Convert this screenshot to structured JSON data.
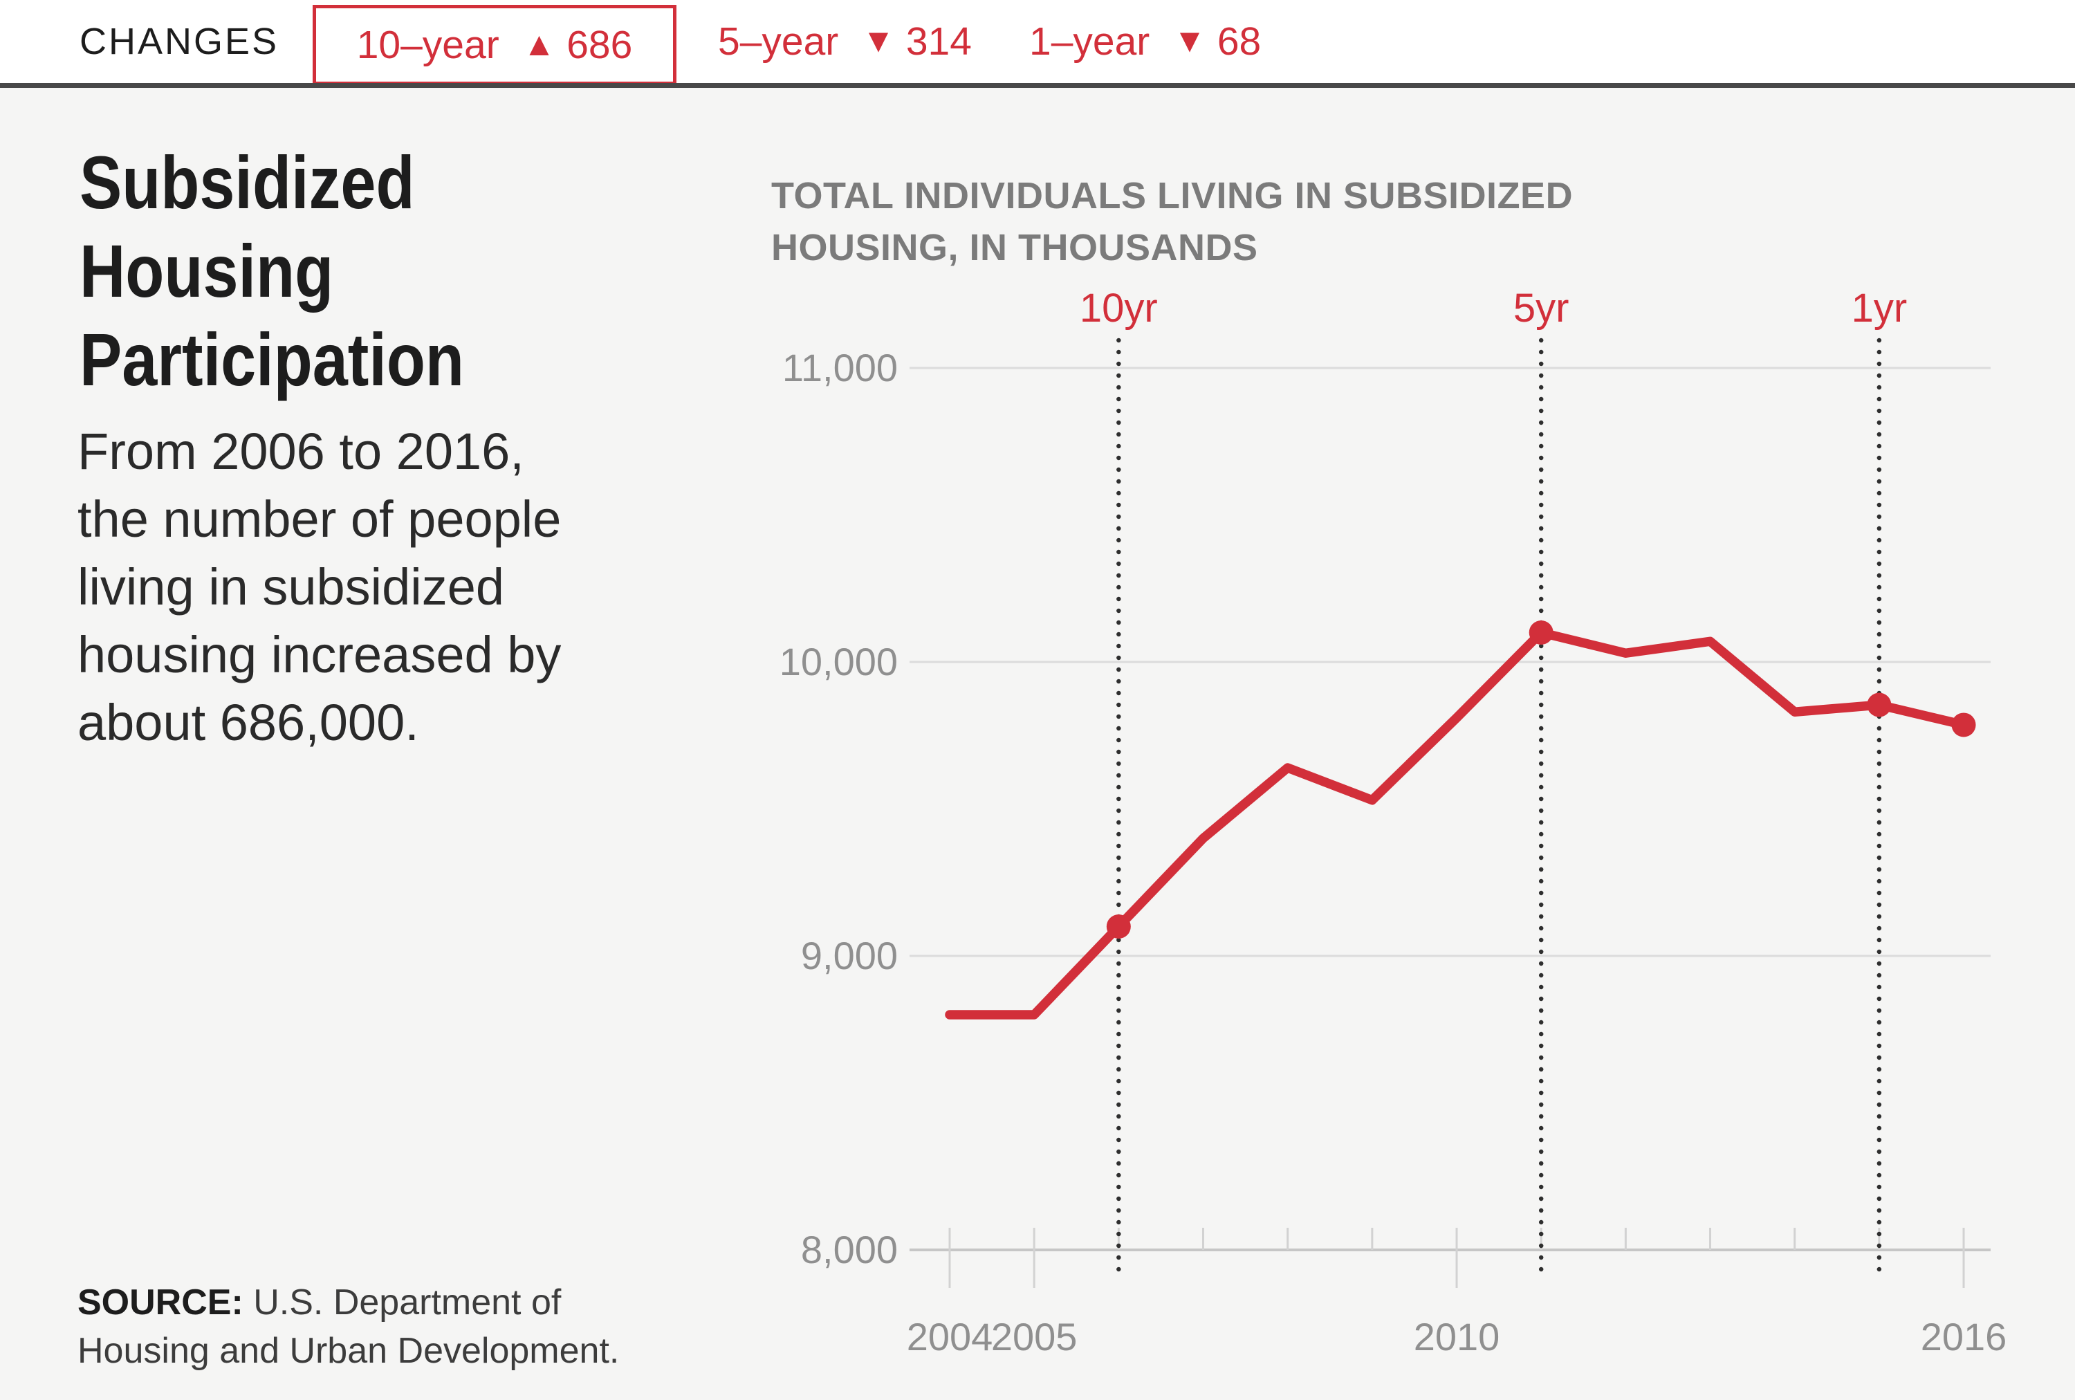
{
  "header": {
    "changes_label": "CHANGES",
    "changes": [
      {
        "period": "10–year",
        "direction": "up",
        "value": "686",
        "boxed": true
      },
      {
        "period": "5–year",
        "direction": "down",
        "value": "314",
        "boxed": false
      },
      {
        "period": "1–year",
        "direction": "down",
        "value": "68",
        "boxed": false
      }
    ]
  },
  "article": {
    "title_lines": [
      "Subsidized",
      "Housing",
      "Participation"
    ],
    "description_lines": [
      "From 2006 to 2016,",
      "the number of people",
      "living in subsidized",
      "housing increased by",
      "about 686,000."
    ],
    "source_label": "SOURCE:",
    "source_rest": " U.S. Department of Housing and Urban Development."
  },
  "chart_data": {
    "type": "line",
    "title_lines": [
      "TOTAL INDIVIDUALS LIVING IN SUBSIDIZED",
      "HOUSING, IN THOUSANDS"
    ],
    "unit": "thousands",
    "x": [
      2004,
      2005,
      2006,
      2007,
      2008,
      2009,
      2010,
      2011,
      2012,
      2013,
      2014,
      2015,
      2016
    ],
    "values": [
      8800,
      8800,
      9100,
      9400,
      9640,
      9530,
      9810,
      10100,
      10030,
      10070,
      9830,
      9854,
      9786
    ],
    "marker_years": [
      2006,
      2011,
      2015,
      2016
    ],
    "reference_lines": [
      {
        "label": "10yr",
        "year": 2006
      },
      {
        "label": "5yr",
        "year": 2011
      },
      {
        "label": "1yr",
        "year": 2015
      }
    ],
    "y_ticks": [
      {
        "value": 8000,
        "label": "8,000"
      },
      {
        "value": 9000,
        "label": "9,000"
      },
      {
        "value": 10000,
        "label": "10,000"
      },
      {
        "value": 11000,
        "label": "11,000"
      }
    ],
    "ylim": [
      8000,
      11000
    ],
    "x_tick_years": [
      2004,
      2005,
      2006,
      2007,
      2008,
      2009,
      2010,
      2011,
      2012,
      2013,
      2014,
      2015,
      2016
    ],
    "x_labeled_years": [
      2004,
      2005,
      2010,
      2016
    ],
    "grid": true,
    "legend_position": "none",
    "colors": {
      "line": "#d22f3a",
      "accent": "#d22f3a",
      "grid": "#dcdcdc",
      "axis": "#c6c6c6",
      "tick": "#d2d2d2",
      "axis_label": "#8f8f8f",
      "chart_title": "#7b7b7b",
      "dotted_line": "#2e2e2e"
    }
  }
}
